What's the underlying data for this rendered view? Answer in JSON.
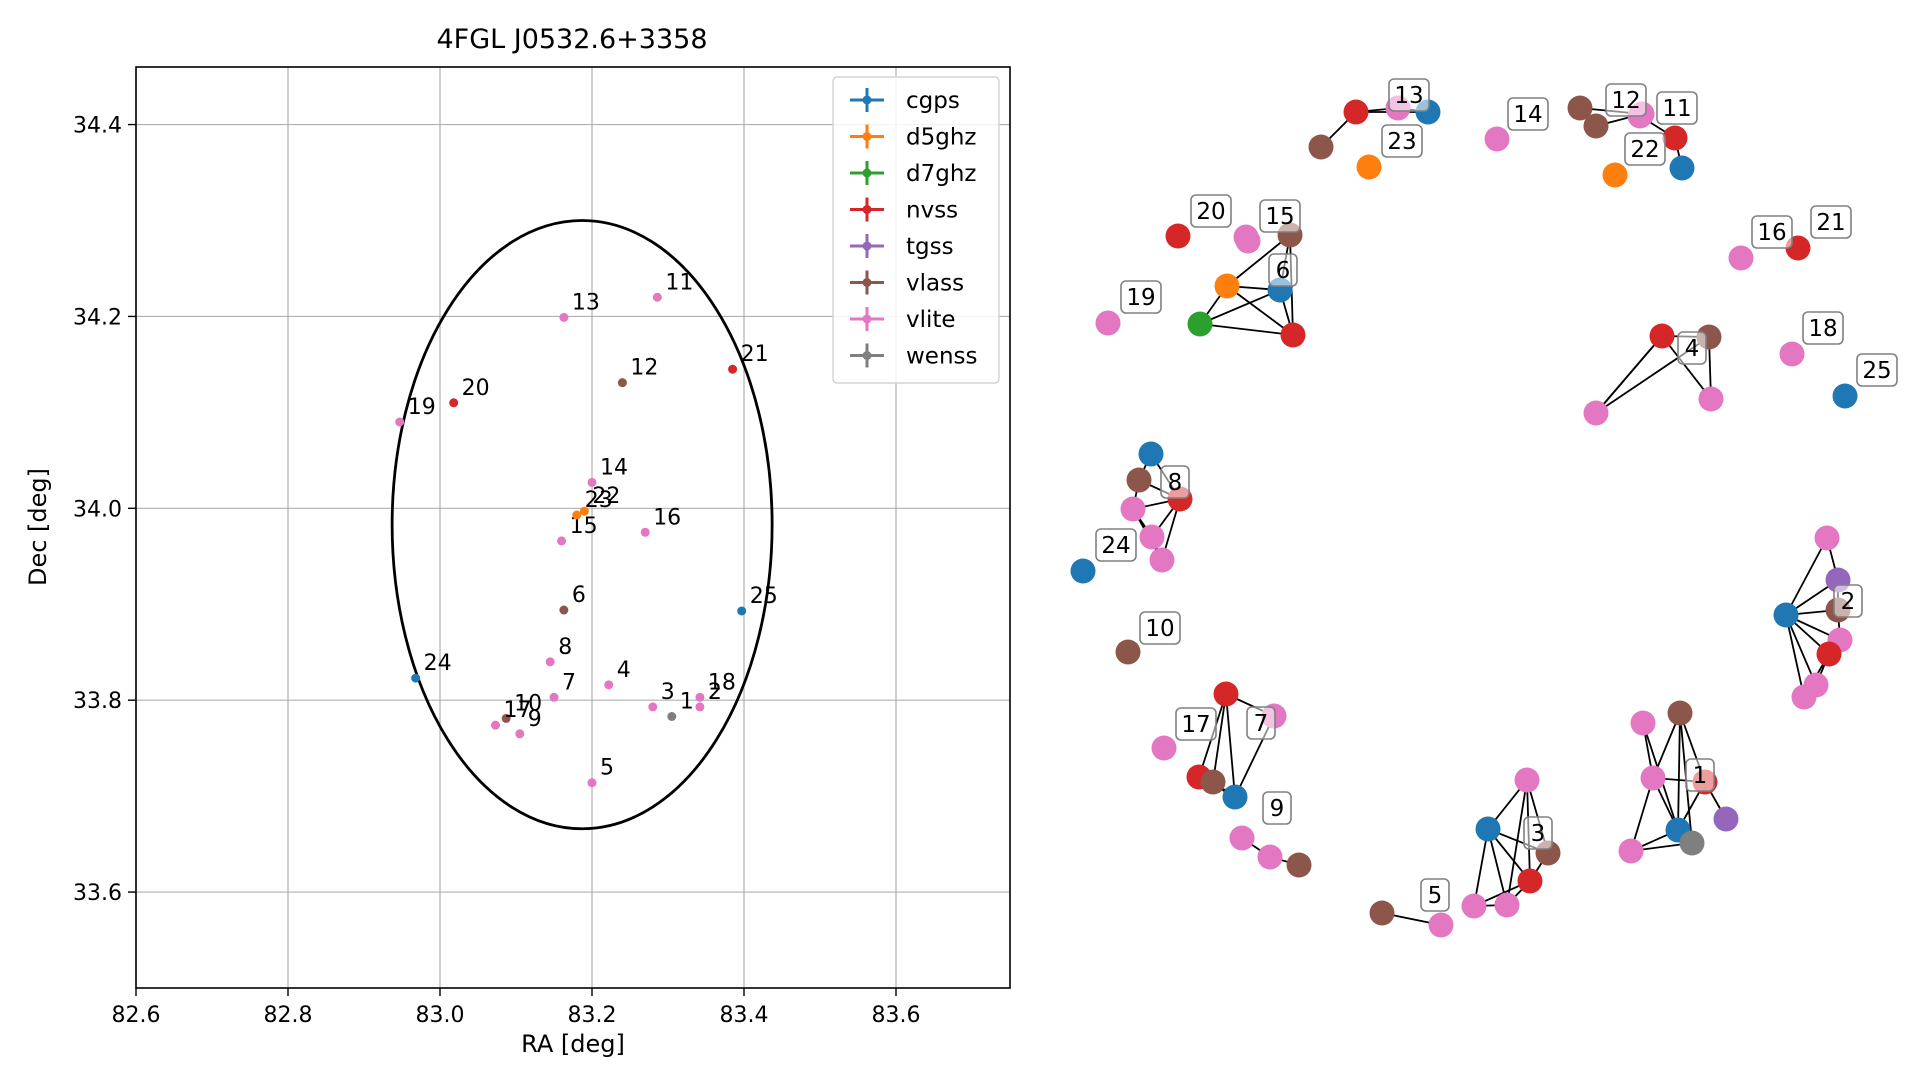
{
  "chart_data": [
    {
      "type": "scatter",
      "title": "4FGL J0532.6+3358",
      "xlabel": "RA [deg]",
      "ylabel": "Dec [deg]",
      "xlim": [
        82.6,
        83.75
      ],
      "ylim": [
        33.5,
        34.46
      ],
      "x_ticks": [
        "82.6",
        "82.8",
        "83.0",
        "83.2",
        "83.4",
        "83.6"
      ],
      "y_ticks": [
        "33.6",
        "33.8",
        "34.0",
        "34.2",
        "34.4"
      ],
      "grid": true,
      "legend_position": "top-right",
      "ellipse": {
        "center_ra": 83.187,
        "center_dec": 33.983,
        "semi_ra": 0.25,
        "semi_dec": 0.317
      },
      "series": [
        {
          "name": "cgps",
          "color": "#1f77b4"
        },
        {
          "name": "d5ghz",
          "color": "#ff7f0e"
        },
        {
          "name": "d7ghz",
          "color": "#2ca02c"
        },
        {
          "name": "nvss",
          "color": "#d62728"
        },
        {
          "name": "tgss",
          "color": "#9467bd"
        },
        {
          "name": "vlass",
          "color": "#8c564b"
        },
        {
          "name": "vlite",
          "color": "#e377c2"
        },
        {
          "name": "wenss",
          "color": "#7f7f7f"
        }
      ],
      "points": [
        {
          "label": "1",
          "ra": 83.305,
          "dec": 33.783,
          "series": "wenss"
        },
        {
          "label": "2",
          "ra": 83.342,
          "dec": 33.793,
          "series": "vlite"
        },
        {
          "label": "3",
          "ra": 83.28,
          "dec": 33.793,
          "series": "vlite"
        },
        {
          "label": "4",
          "ra": 83.222,
          "dec": 33.816,
          "series": "vlite"
        },
        {
          "label": "5",
          "ra": 83.2,
          "dec": 33.714,
          "series": "vlite"
        },
        {
          "label": "6",
          "ra": 83.163,
          "dec": 33.894,
          "series": "vlass"
        },
        {
          "label": "7",
          "ra": 83.15,
          "dec": 33.803,
          "series": "vlite"
        },
        {
          "label": "8",
          "ra": 83.145,
          "dec": 33.84,
          "series": "vlite"
        },
        {
          "label": "9",
          "ra": 83.105,
          "dec": 33.765,
          "series": "vlite"
        },
        {
          "label": "10",
          "ra": 83.087,
          "dec": 33.781,
          "series": "vlass"
        },
        {
          "label": "11",
          "ra": 83.286,
          "dec": 34.22,
          "series": "vlite"
        },
        {
          "label": "12",
          "ra": 83.24,
          "dec": 34.131,
          "series": "vlass"
        },
        {
          "label": "13",
          "ra": 83.163,
          "dec": 34.199,
          "series": "vlite"
        },
        {
          "label": "14",
          "ra": 83.2,
          "dec": 34.027,
          "series": "vlite"
        },
        {
          "label": "15",
          "ra": 83.16,
          "dec": 33.966,
          "series": "vlite"
        },
        {
          "label": "16",
          "ra": 83.27,
          "dec": 33.975,
          "series": "vlite"
        },
        {
          "label": "17",
          "ra": 83.073,
          "dec": 33.774,
          "series": "vlite"
        },
        {
          "label": "18",
          "ra": 83.342,
          "dec": 33.803,
          "series": "vlite"
        },
        {
          "label": "19",
          "ra": 82.947,
          "dec": 34.09,
          "series": "vlite"
        },
        {
          "label": "20",
          "ra": 83.018,
          "dec": 34.11,
          "series": "nvss"
        },
        {
          "label": "21",
          "ra": 83.385,
          "dec": 34.145,
          "series": "nvss"
        },
        {
          "label": "22",
          "ra": 83.19,
          "dec": 33.997,
          "series": "d5ghz"
        },
        {
          "label": "23",
          "ra": 83.18,
          "dec": 33.993,
          "series": "d5ghz"
        },
        {
          "label": "24",
          "ra": 82.968,
          "dec": 33.823,
          "series": "cgps"
        },
        {
          "label": "25",
          "ra": 83.397,
          "dec": 33.893,
          "series": "cgps"
        }
      ]
    },
    {
      "type": "network",
      "clusters": [
        {
          "label": "1",
          "members": [
            "vlite",
            "vlass",
            "vlite",
            "nvss",
            "tgss",
            "cgps",
            "wenss",
            "vlite"
          ]
        },
        {
          "label": "2",
          "members": [
            "cgps",
            "vlite",
            "tgss",
            "vlass",
            "vlite",
            "nvss",
            "vlite",
            "vlite"
          ]
        },
        {
          "label": "3",
          "members": [
            "cgps",
            "vlite",
            "vlass",
            "nvss",
            "vlite",
            "vlite"
          ]
        },
        {
          "label": "4",
          "members": [
            "nvss",
            "vlass",
            "vlite",
            "vlite"
          ]
        },
        {
          "label": "5",
          "members": [
            "vlass",
            "vlite"
          ]
        },
        {
          "label": "6",
          "members": [
            "d5ghz",
            "cgps",
            "d7ghz",
            "nvss",
            "vlass",
            "vlite"
          ]
        },
        {
          "label": "7",
          "members": [
            "nvss",
            "vlite",
            "nvss",
            "vlass",
            "cgps"
          ]
        },
        {
          "label": "8",
          "members": [
            "cgps",
            "vlass",
            "nvss",
            "vlite",
            "vlite",
            "vlite"
          ]
        },
        {
          "label": "9",
          "members": [
            "vlite",
            "vlite",
            "vlass"
          ]
        },
        {
          "label": "10",
          "members": [
            "vlass"
          ]
        },
        {
          "label": "11",
          "members": [
            "nvss",
            "cgps",
            "vlite"
          ]
        },
        {
          "label": "12",
          "members": [
            "vlass",
            "vlass",
            "vlite"
          ]
        },
        {
          "label": "13",
          "members": [
            "nvss",
            "vlite",
            "cgps",
            "vlass"
          ]
        },
        {
          "label": "14",
          "members": [
            "vlite"
          ]
        },
        {
          "label": "15",
          "members": [
            "vlite"
          ]
        },
        {
          "label": "16",
          "members": [
            "vlite"
          ]
        },
        {
          "label": "17",
          "members": [
            "vlite"
          ]
        },
        {
          "label": "18",
          "members": [
            "vlite"
          ]
        },
        {
          "label": "19",
          "members": [
            "vlite"
          ]
        },
        {
          "label": "20",
          "members": [
            "nvss"
          ]
        },
        {
          "label": "21",
          "members": [
            "nvss"
          ]
        },
        {
          "label": "22",
          "members": [
            "d5ghz"
          ]
        },
        {
          "label": "23",
          "members": [
            "d5ghz"
          ]
        },
        {
          "label": "24",
          "members": [
            "cgps"
          ]
        },
        {
          "label": "25",
          "members": [
            "cgps"
          ]
        }
      ]
    }
  ]
}
